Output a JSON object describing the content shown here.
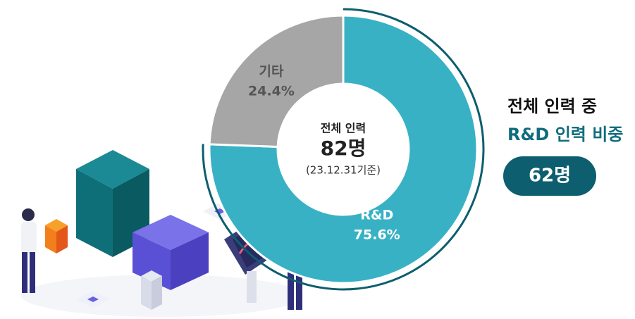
{
  "chart_data": {
    "type": "donut",
    "categories": [
      "R&D",
      "기타"
    ],
    "values": [
      75.6,
      24.4
    ],
    "value_labels": [
      "75.6%",
      "24.4%"
    ],
    "colors": [
      "#38b1c5",
      "#a6a6a6"
    ],
    "center": {
      "title": "전체 인력",
      "value": "82명",
      "note": "(23.12.31기준)"
    },
    "summary": {
      "line1": "전체 인력 중",
      "line2": "R&D 인력 비중",
      "badge": "62명"
    }
  }
}
